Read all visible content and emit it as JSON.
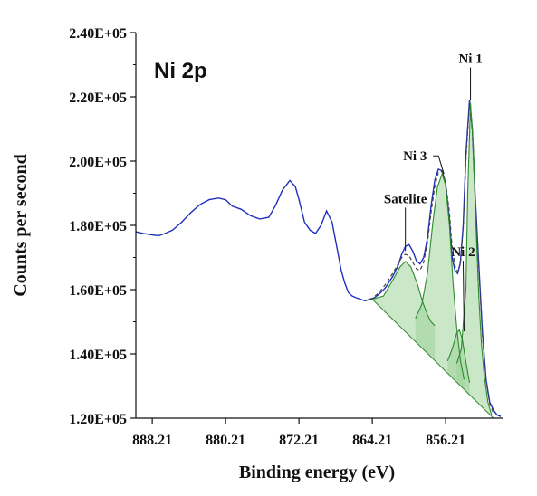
{
  "chart_data": {
    "type": "line",
    "title": "Ni 2p",
    "xlabel": "Binding energy (eV)",
    "ylabel": "Counts per second",
    "x_reversed": true,
    "xlim": [
      890.0,
      850.0
    ],
    "ylim": [
      120000,
      240000
    ],
    "x_ticks": [
      {
        "value": 888.21,
        "label": "888.21"
      },
      {
        "value": 880.21,
        "label": "880.21"
      },
      {
        "value": 872.21,
        "label": "872.21"
      },
      {
        "value": 864.21,
        "label": "864.21"
      },
      {
        "value": 856.21,
        "label": "856.21"
      }
    ],
    "y_ticks": [
      {
        "value": 120000,
        "label": "1.20E+05"
      },
      {
        "value": 140000,
        "label": "1.40E+05"
      },
      {
        "value": 160000,
        "label": "1.60E+05"
      },
      {
        "value": 180000,
        "label": "1.80E+05"
      },
      {
        "value": 200000,
        "label": "2.00E+05"
      },
      {
        "value": 220000,
        "label": "2.20E+05"
      },
      {
        "value": 240000,
        "label": "2.40E+05"
      }
    ],
    "grid": false,
    "colors": {
      "measured": "#1f2fbf",
      "envelope": "#444444",
      "component_fill": "#9fd49a",
      "component_line": "#2e8b2e"
    },
    "background": {
      "start": 864.21,
      "end": 851.0,
      "y_start": 157000,
      "y_end": 120000
    },
    "series": [
      {
        "kind": "measured",
        "x": [
          890.0,
          889.2,
          888.21,
          887.5,
          886.8,
          886.0,
          885.0,
          884.0,
          883.0,
          882.0,
          881.0,
          880.21,
          879.5,
          878.5,
          877.5,
          876.5,
          875.5,
          874.8,
          874.0,
          873.2,
          872.6,
          872.2,
          871.6,
          871.0,
          870.4,
          869.8,
          869.2,
          868.6,
          868.0,
          867.6,
          867.2,
          866.8,
          866.4,
          866.0,
          865.5,
          865.0,
          864.5,
          864.21,
          863.5,
          862.8,
          862.0,
          861.4,
          861.0,
          860.6,
          860.2,
          859.8,
          859.4,
          859.0,
          858.6,
          858.2,
          857.8,
          857.4,
          857.0,
          856.6,
          856.21,
          855.8,
          855.5,
          855.2,
          854.9,
          854.6,
          854.3,
          854.0,
          853.6,
          853.3,
          853.0,
          852.6,
          852.2,
          851.8,
          851.4,
          851.0,
          850.6,
          850.2
        ],
        "y": [
          178000,
          177500,
          177000,
          176800,
          177500,
          178500,
          181000,
          184000,
          186500,
          188000,
          188500,
          188000,
          186000,
          185000,
          183000,
          182000,
          182500,
          186000,
          191000,
          194000,
          192000,
          188000,
          181000,
          178500,
          177500,
          180000,
          184500,
          181000,
          172000,
          166000,
          162000,
          159000,
          158000,
          157500,
          157000,
          156500,
          157000,
          157000,
          158500,
          160500,
          164000,
          167500,
          171000,
          173500,
          174000,
          172000,
          169000,
          168000,
          170000,
          176000,
          186000,
          194000,
          197500,
          197000,
          193000,
          182000,
          170000,
          166000,
          165000,
          168500,
          180000,
          202000,
          219000,
          210000,
          190000,
          168000,
          147000,
          132000,
          125000,
          122500,
          121000,
          120500
        ]
      },
      {
        "kind": "envelope",
        "x": [
          864.5,
          864.21,
          863.5,
          862.8,
          862.0,
          861.4,
          861.0,
          860.6,
          860.2,
          859.8,
          859.4,
          859.0,
          858.6,
          858.2,
          857.8,
          857.4,
          857.0,
          856.6,
          856.21,
          855.8,
          855.5,
          855.2,
          854.9,
          854.6,
          854.3,
          854.0,
          853.6,
          853.3,
          853.0,
          852.6,
          852.2,
          851.8,
          851.4,
          851.0
        ],
        "y": [
          157000,
          157300,
          159000,
          161500,
          165000,
          168000,
          170000,
          171000,
          170500,
          168500,
          166500,
          166000,
          168500,
          174500,
          184000,
          192000,
          196500,
          196800,
          193500,
          184000,
          173000,
          167500,
          165500,
          168000,
          179000,
          200000,
          218500,
          209000,
          189000,
          167000,
          146000,
          131500,
          124500,
          121500
        ]
      },
      {
        "kind": "component",
        "x": [
          864.21,
          863.0,
          862.0,
          861.2,
          860.6,
          860.0,
          859.3,
          858.7,
          858.2,
          857.8,
          857.4
        ],
        "y": [
          157000,
          158000,
          162800,
          167000,
          168800,
          167000,
          161800,
          156000,
          152200,
          150000,
          148800
        ]
      },
      {
        "kind": "component",
        "x": [
          859.5,
          858.8,
          858.2,
          857.6,
          857.1,
          856.6,
          856.21,
          855.8,
          855.4,
          855.0,
          854.6,
          854.2
        ],
        "y": [
          151000,
          155500,
          165000,
          181000,
          192000,
          196000,
          192500,
          180000,
          162000,
          148000,
          138000,
          132000
        ]
      },
      {
        "kind": "component",
        "x": [
          856.0,
          855.5,
          855.0,
          854.7,
          854.4,
          854.0,
          853.6
        ],
        "y": [
          137800,
          141500,
          146500,
          147500,
          144500,
          137500,
          131000
        ]
      },
      {
        "kind": "component",
        "x": [
          855.0,
          854.5,
          854.0,
          853.8,
          853.5,
          853.2,
          852.9,
          852.6,
          852.3,
          852.0,
          851.6,
          851.2
        ],
        "y": [
          137000,
          141500,
          160000,
          190000,
          218000,
          205000,
          180000,
          158000,
          143000,
          133000,
          125000,
          121000
        ]
      }
    ],
    "annotations": [
      {
        "label": "Ni 1",
        "x": 853.5,
        "y": 219000
      },
      {
        "label": "Ni 2",
        "x": 854.2,
        "y": 147000
      },
      {
        "label": "Ni 3",
        "x": 856.4,
        "y": 196000
      },
      {
        "label": "Satelite",
        "x": 860.6,
        "y": 172000
      }
    ]
  }
}
